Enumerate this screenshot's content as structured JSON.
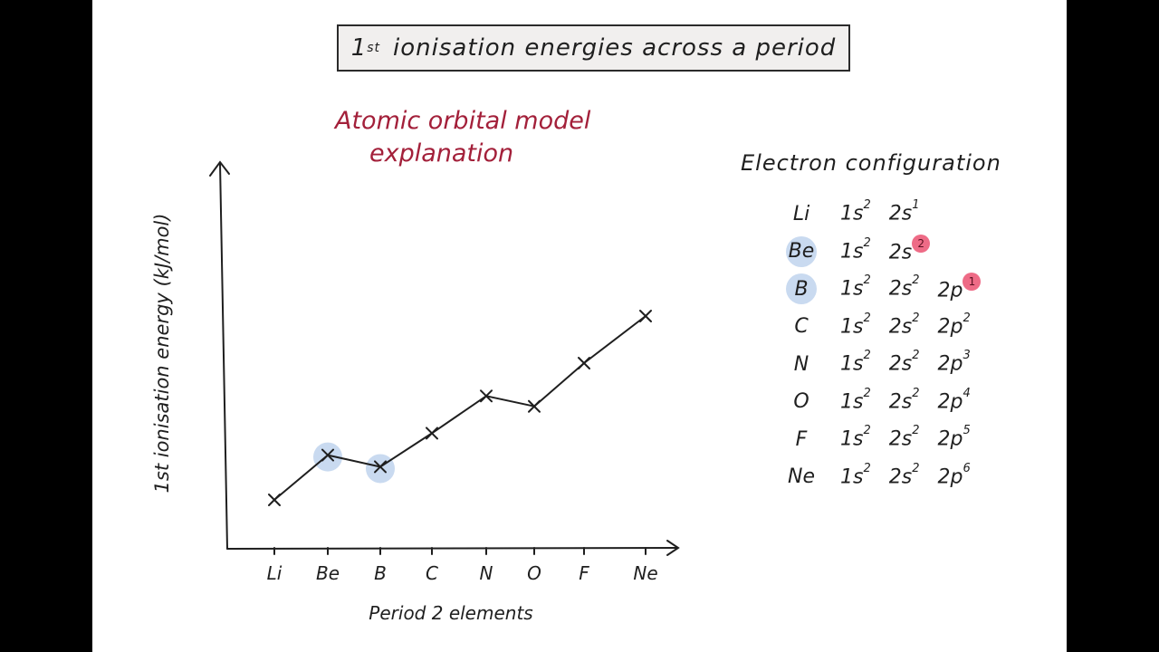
{
  "title": {
    "prefix": "1",
    "sup": "st",
    "text": "ionisation energies across a period"
  },
  "subtitle": {
    "line1": "Atomic orbital model",
    "line2": "explanation"
  },
  "config_heading": "Electron configuration",
  "configs": [
    {
      "el": "Li",
      "hl": false,
      "orbs": [
        [
          "1s",
          "2"
        ],
        [
          "2s",
          "1"
        ]
      ],
      "pink": false
    },
    {
      "el": "Be",
      "hl": true,
      "orbs": [
        [
          "1s",
          "2"
        ],
        [
          "2s",
          "2"
        ]
      ],
      "pink": true
    },
    {
      "el": "B",
      "hl": true,
      "orbs": [
        [
          "1s",
          "2"
        ],
        [
          "2s",
          "2"
        ],
        [
          "2p",
          "1"
        ]
      ],
      "pink": true
    },
    {
      "el": "C",
      "hl": false,
      "orbs": [
        [
          "1s",
          "2"
        ],
        [
          "2s",
          "2"
        ],
        [
          "2p",
          "2"
        ]
      ],
      "pink": false
    },
    {
      "el": "N",
      "hl": false,
      "orbs": [
        [
          "1s",
          "2"
        ],
        [
          "2s",
          "2"
        ],
        [
          "2p",
          "3"
        ]
      ],
      "pink": false
    },
    {
      "el": "O",
      "hl": false,
      "orbs": [
        [
          "1s",
          "2"
        ],
        [
          "2s",
          "2"
        ],
        [
          "2p",
          "4"
        ]
      ],
      "pink": false
    },
    {
      "el": "F",
      "hl": false,
      "orbs": [
        [
          "1s",
          "2"
        ],
        [
          "2s",
          "2"
        ],
        [
          "2p",
          "5"
        ]
      ],
      "pink": false
    },
    {
      "el": "Ne",
      "hl": false,
      "orbs": [
        [
          "1s",
          "2"
        ],
        [
          "2s",
          "2"
        ],
        [
          "2p",
          "6"
        ]
      ],
      "pink": false
    }
  ],
  "colors": {
    "accent": "#a3203a",
    "highlight": "#c9daf0",
    "pink": "#ee6b86",
    "ink": "#1f1f1f"
  },
  "chart_data": {
    "type": "line",
    "xlabel": "Period 2 elements",
    "ylabel": "1st ionisation energy (kJ/mol)",
    "categories": [
      "Li",
      "Be",
      "B",
      "C",
      "N",
      "O",
      "F",
      "Ne"
    ],
    "series": [
      {
        "values": [
          520,
          900,
          801,
          1086,
          1402,
          1314,
          1681,
          2081
        ]
      }
    ],
    "highlighted": [
      "Be",
      "B"
    ],
    "markers": "x",
    "grid": false
  }
}
